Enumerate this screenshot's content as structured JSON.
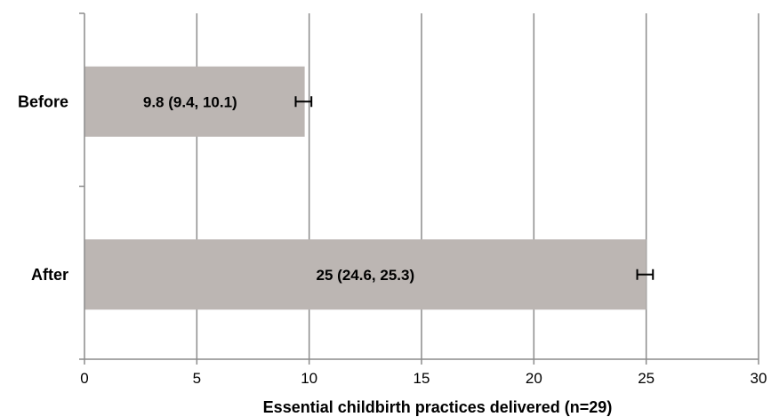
{
  "chart_data": {
    "type": "bar",
    "orientation": "horizontal",
    "categories": [
      "Before",
      "After"
    ],
    "values": [
      9.8,
      25
    ],
    "error_low": [
      9.4,
      24.6
    ],
    "error_high": [
      10.1,
      25.3
    ],
    "data_labels": [
      "9.8 (9.4, 10.1)",
      "25 (24.6, 25.3)"
    ],
    "xlabel": "Essential childbirth practices delivered (n=29)",
    "xlim": [
      0,
      30
    ],
    "xticks": [
      0,
      5,
      10,
      15,
      20,
      25,
      30
    ],
    "grid": "vertical",
    "colors": {
      "bar": "#bcb6b3",
      "grid": "#8c8c8c",
      "error_bar": "#000000"
    }
  }
}
